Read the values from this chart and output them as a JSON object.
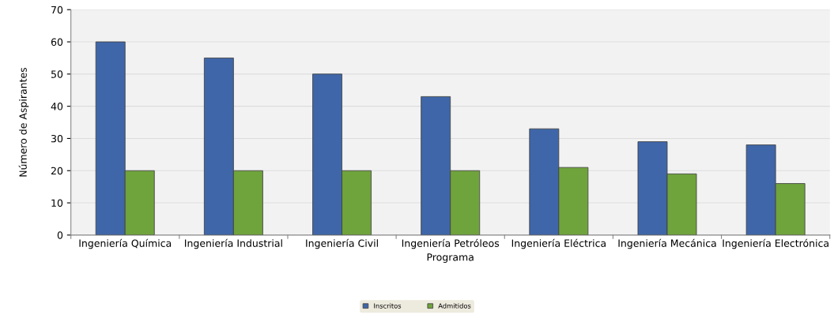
{
  "chart_data": {
    "type": "bar",
    "xlabel": "Programa",
    "ylabel": "Número de Aspirantes",
    "categories": [
      "Ingeniería Química",
      "Ingeniería Industrial",
      "Ingeniería Civil",
      "Ingeniería Petróleos",
      "Ingeniería Eléctrica",
      "Ingeniería Mecánica",
      "Ingeniería Electrónica"
    ],
    "series": [
      {
        "name": "Inscritos",
        "color": "#3f66a8",
        "values": [
          60,
          55,
          50,
          43,
          33,
          29,
          28
        ]
      },
      {
        "name": "Admitidos",
        "color": "#6fa33c",
        "values": [
          20,
          20,
          20,
          20,
          21,
          19,
          16
        ]
      }
    ],
    "ylim": [
      0,
      70
    ],
    "yticks": [
      0,
      10,
      20,
      30,
      40,
      50,
      60,
      70
    ],
    "grid": "y",
    "legend": "bottom"
  }
}
